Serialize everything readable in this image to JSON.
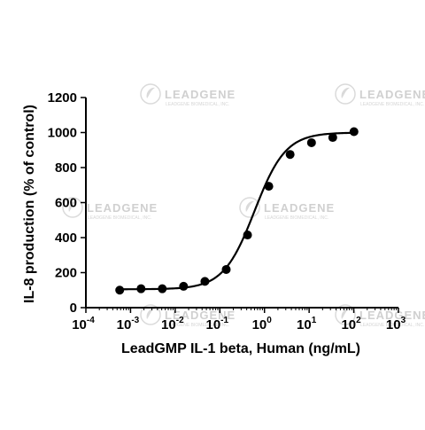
{
  "chart_data": {
    "type": "scatter",
    "xlabel": "LeadGMP IL-1 beta, Human (ng/mL)",
    "ylabel": "IL-8 production (% of control)",
    "xscale": "log",
    "xlim": [
      0.0001,
      1000
    ],
    "ylim": [
      0,
      1200
    ],
    "x_ticks": [
      {
        "base": "10",
        "exp": "-4",
        "value": 0.0001
      },
      {
        "base": "10",
        "exp": "-3",
        "value": 0.001
      },
      {
        "base": "10",
        "exp": "-2",
        "value": 0.01
      },
      {
        "base": "10",
        "exp": "-1",
        "value": 0.1
      },
      {
        "base": "10",
        "exp": "0",
        "value": 1
      },
      {
        "base": "10",
        "exp": "1",
        "value": 10
      },
      {
        "base": "10",
        "exp": "2",
        "value": 100
      },
      {
        "base": "10",
        "exp": "3",
        "value": 1000
      }
    ],
    "y_ticks": [
      "0",
      "200",
      "400",
      "600",
      "800",
      "1000",
      "1200"
    ],
    "series": [
      {
        "x": [
          0.000572,
          0.00172,
          0.00514,
          0.0154,
          0.0463,
          0.139,
          0.417,
          1.25,
          3.75,
          11.3,
          33.8,
          101
        ],
        "y": [
          100,
          108,
          108,
          122,
          150,
          218,
          415,
          693,
          875,
          942,
          972,
          1005
        ],
        "marker": "circle",
        "fit": "sigmoidal curve"
      }
    ],
    "fit_curve": {
      "bottom": 105,
      "top": 1000,
      "ec50": 0.6,
      "hill": 1.25
    },
    "grid": false,
    "legend": "none",
    "colors": {
      "marker": "#000000",
      "line": "#000000",
      "axis": "#000000"
    }
  },
  "watermark": {
    "text": "LEADGENE",
    "subtext": "LEADGENE BIOMEDICAL, INC."
  }
}
